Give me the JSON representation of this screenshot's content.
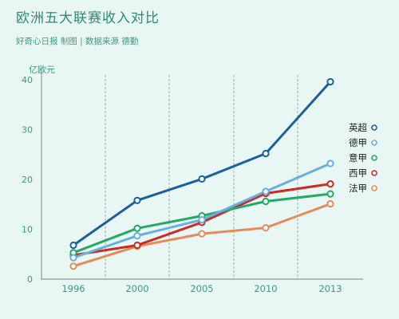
{
  "header": {
    "title": "欧洲五大联赛收入对比",
    "subtitle": "好奇心日报 制图 | 数据来源 德勤"
  },
  "chart_data": {
    "type": "line",
    "ylabel": "亿欧元",
    "xlabel": "",
    "categories": [
      "1996",
      "2000",
      "2005",
      "2010",
      "2013"
    ],
    "ylim": [
      0,
      40
    ],
    "yticks": [
      0,
      10,
      20,
      30,
      40
    ],
    "grid": "vertical-dashed",
    "legend_position": "right",
    "series": [
      {
        "name": "英超",
        "color": "#1a5fa0",
        "values": [
          6.8,
          15.8,
          20.1,
          25.2,
          39.6
        ]
      },
      {
        "name": "德甲",
        "color": "#6aaee0",
        "values": [
          4.3,
          8.7,
          11.9,
          17.6,
          23.2
        ]
      },
      {
        "name": "意甲",
        "color": "#23a866",
        "values": [
          5.3,
          10.2,
          12.7,
          15.6,
          17.1
        ]
      },
      {
        "name": "西甲",
        "color": "#cc2a22",
        "values": [
          4.8,
          6.8,
          11.4,
          17.2,
          19.1
        ]
      },
      {
        "name": "法甲",
        "color": "#e58a59",
        "values": [
          2.6,
          6.6,
          9.1,
          10.3,
          15.1
        ]
      }
    ]
  }
}
